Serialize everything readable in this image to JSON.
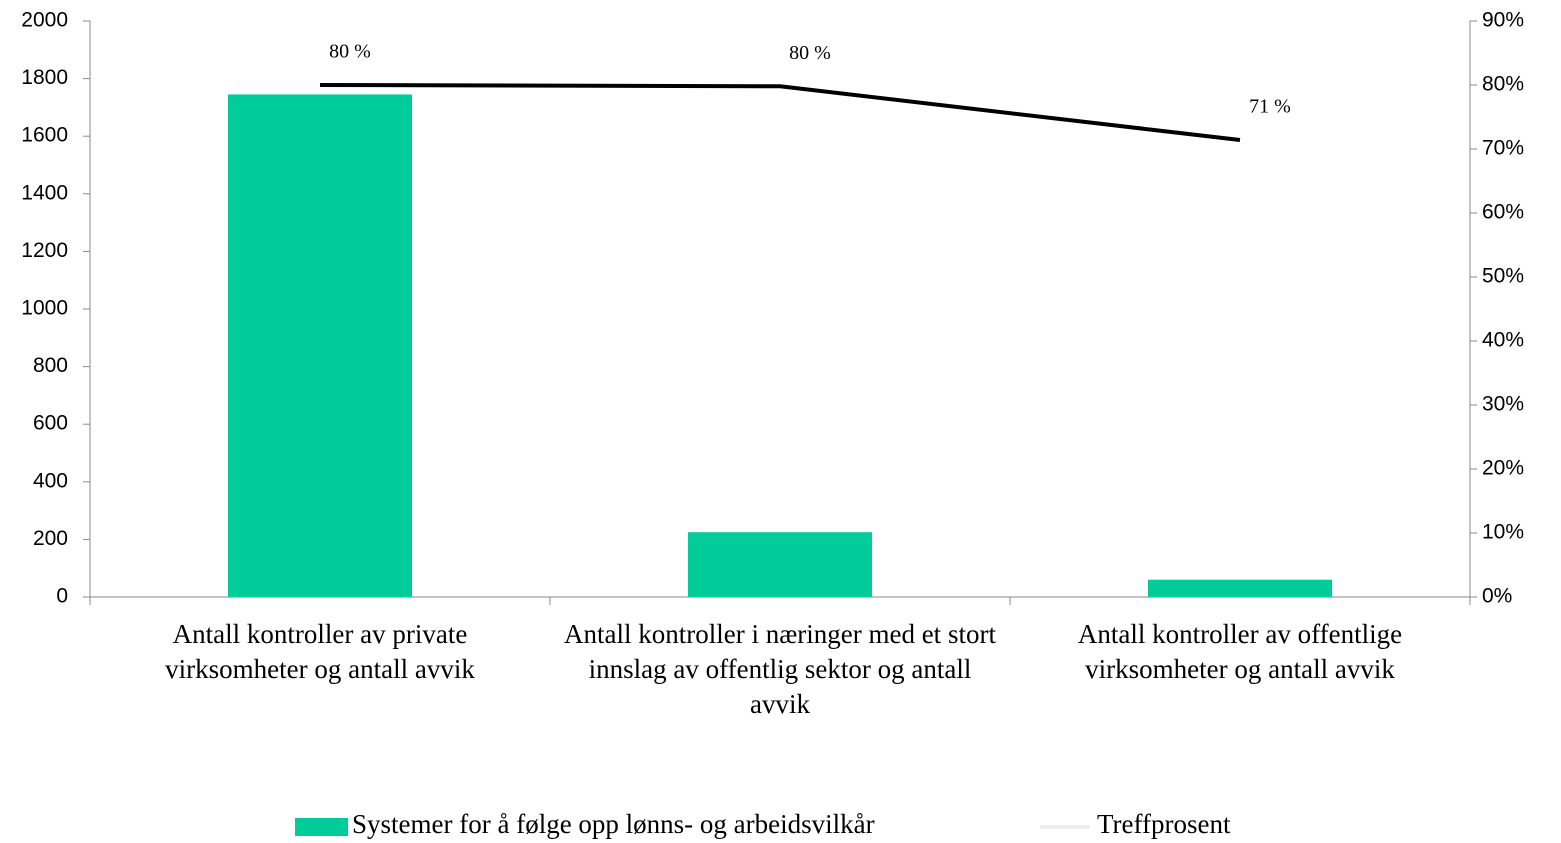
{
  "chart_data": {
    "type": "bar+line",
    "categories": [
      "Antall kontroller av private virksomheter og antall avvik",
      "Antall kontroller i næringer  med et stort innslag av offentlig sektor og antall avvik",
      "Antall kontroller av offentlige virksomheter og antall avvik"
    ],
    "series": [
      {
        "name": "Systemer for å følge opp lønns- og arbeidsvilkår",
        "type": "bar",
        "color": "#00cc99",
        "values": [
          1745,
          225,
          60
        ]
      },
      {
        "name": "Treffprosent",
        "type": "line",
        "axis": "y2",
        "color": "#000000",
        "values": [
          80,
          79.8,
          71.4
        ],
        "value_labels": [
          "80 %",
          "80 %",
          "71 %"
        ]
      }
    ],
    "ylim": [
      0,
      2000
    ],
    "yticks": [
      0,
      200,
      400,
      600,
      800,
      1000,
      1200,
      1400,
      1600,
      1800,
      2000
    ],
    "y2lim": [
      0,
      90
    ],
    "y2ticks": [
      {
        "value": 0,
        "label": "0%"
      },
      {
        "value": 10,
        "label": "10%"
      },
      {
        "value": 20,
        "label": "20%"
      },
      {
        "value": 30,
        "label": "30%"
      },
      {
        "value": 40,
        "label": "40%"
      },
      {
        "value": 50,
        "label": "50%"
      },
      {
        "value": 60,
        "label": "60%"
      },
      {
        "value": 70,
        "label": "70%"
      },
      {
        "value": 80,
        "label": "80%"
      },
      {
        "value": 90,
        "label": "90%"
      }
    ],
    "grid": false,
    "legend": "bottom"
  }
}
